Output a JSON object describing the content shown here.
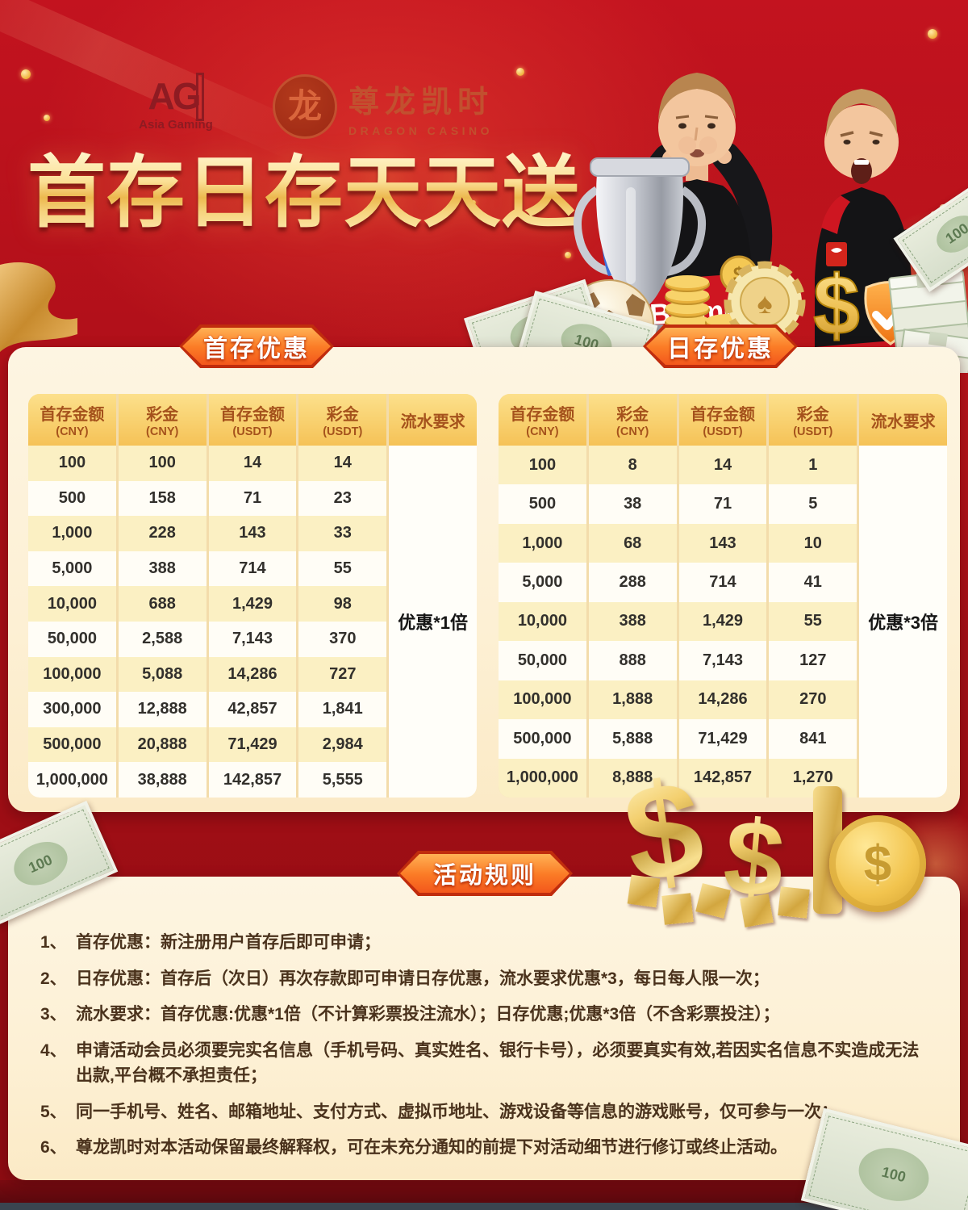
{
  "brand": {
    "ag": "AG",
    "ag_sub": "Asia Gaming",
    "dragon_icon": "龙",
    "dragon_cn": "尊龙凯时",
    "dragon_en": "DRAGON CASINO"
  },
  "title": "首存日存天天送",
  "tabs": {
    "first": "首存优惠",
    "daily": "日存优惠"
  },
  "tables": {
    "headers": [
      {
        "label": "首存金额",
        "sub": "(CNY)"
      },
      {
        "label": "彩金",
        "sub": "(CNY)"
      },
      {
        "label": "首存金额",
        "sub": "(USDT)"
      },
      {
        "label": "彩金",
        "sub": "(USDT)"
      },
      {
        "label": "流水要求",
        "sub": ""
      }
    ],
    "first": {
      "rows": [
        [
          "100",
          "100",
          "14",
          "14"
        ],
        [
          "500",
          "158",
          "71",
          "23"
        ],
        [
          "1,000",
          "228",
          "143",
          "33"
        ],
        [
          "5,000",
          "388",
          "714",
          "55"
        ],
        [
          "10,000",
          "688",
          "1,429",
          "98"
        ],
        [
          "50,000",
          "2,588",
          "7,143",
          "370"
        ],
        [
          "100,000",
          "5,088",
          "14,286",
          "727"
        ],
        [
          "300,000",
          "12,888",
          "42,857",
          "1,841"
        ],
        [
          "500,000",
          "20,888",
          "71,429",
          "2,984"
        ],
        [
          "1,000,000",
          "38,888",
          "142,857",
          "5,555"
        ]
      ],
      "turnover": "优惠*1倍"
    },
    "daily": {
      "rows": [
        [
          "100",
          "8",
          "14",
          "1"
        ],
        [
          "500",
          "38",
          "71",
          "5"
        ],
        [
          "1,000",
          "68",
          "143",
          "10"
        ],
        [
          "5,000",
          "288",
          "714",
          "41"
        ],
        [
          "10,000",
          "388",
          "1,429",
          "55"
        ],
        [
          "50,000",
          "888",
          "7,143",
          "127"
        ],
        [
          "100,000",
          "1,888",
          "14,286",
          "270"
        ],
        [
          "500,000",
          "5,888",
          "71,429",
          "841"
        ],
        [
          "1,000,000",
          "8,888",
          "142,857",
          "1,270"
        ]
      ],
      "turnover": "优惠*3倍"
    }
  },
  "rules": {
    "title": "活动规则",
    "items": [
      {
        "num": "1、",
        "text": "首存优惠：新注册用户首存后即可申请；"
      },
      {
        "num": "2、",
        "text": "日存优惠：首存后（次日）再次存款即可申请日存优惠，流水要求优惠*3，每日每人限一次；"
      },
      {
        "num": "3、",
        "text": "流水要求：首存优惠:优惠*1倍（不计算彩票投注流水）；日存优惠;优惠*3倍（不含彩票投注）；"
      },
      {
        "num": "4、",
        "text": "申请活动会员必须要完实名信息（手机号码、真实姓名、银行卡号），必须要真实有效,若因实名信息不实造成无法出款,平台概不承担责任；"
      },
      {
        "num": "5、",
        "text": "同一手机号、姓名、邮箱地址、支付方式、虚拟币地址、游戏设备等信息的游戏账号，仅可参与一次；"
      },
      {
        "num": "6、",
        "text": "尊龙凯时对本活动保留最终解释权，可在未充分通知的前提下对活动细节进行修订或终止活动。"
      }
    ]
  },
  "hero": {
    "jersey_text": "Barme",
    "jersey_text_b": "arme"
  },
  "decor": {
    "dollar": "$",
    "spade": "♠",
    "bill_value": "100"
  },
  "colors": {
    "accent_orange": "#f4571c",
    "gold": "#f3c659",
    "deep_red": "#a30f17",
    "cream": "#fdf3dc"
  }
}
